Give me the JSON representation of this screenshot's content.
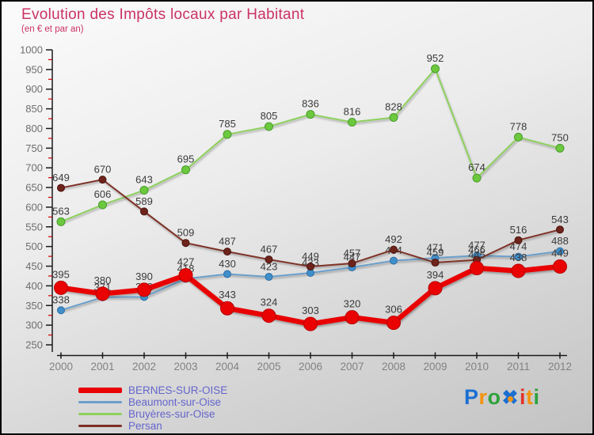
{
  "header": {
    "title": "Evolution des Impôts locaux par Habitant",
    "subtitle": "(en € et par an)",
    "title_color": "#cb3365"
  },
  "chart_data": {
    "type": "line",
    "x": [
      "2000",
      "2001",
      "2002",
      "2003",
      "2004",
      "2005",
      "2006",
      "2007",
      "2008",
      "2009",
      "2010",
      "2011",
      "2012"
    ],
    "series": [
      {
        "name": "BERNES-SUR-OISE",
        "color": "#e90303",
        "dot_stroke": "#b80000",
        "stroke_width": 6.5,
        "dot_radius": 8.5,
        "values": [
          395,
          380,
          390,
          427,
          343,
          324,
          303,
          320,
          306,
          394,
          445,
          438,
          449
        ]
      },
      {
        "name": "Beaumont-sur-Oise",
        "color": "#6b9fcc",
        "dot_stroke": "#2e6da4",
        "dot_fill": "#3f8fca",
        "stroke_width": 2,
        "dot_radius": 4.5,
        "values": [
          338,
          371,
          372,
          418,
          430,
          423,
          433,
          447,
          464,
          471,
          477,
          474,
          488
        ]
      },
      {
        "name": "Bruyères-sur-Oise",
        "color": "#8ed05e",
        "dot_stroke": "#4a9b2f",
        "dot_fill": "#6cc93e",
        "stroke_width": 2,
        "dot_radius": 5,
        "values": [
          563,
          606,
          643,
          695,
          785,
          805,
          836,
          816,
          828,
          952,
          674,
          778,
          750
        ]
      },
      {
        "name": "Persan",
        "color": "#7d3026",
        "dot_stroke": "#4a120c",
        "dot_fill": "#6e241c",
        "stroke_width": 2,
        "dot_radius": 4.5,
        "values": [
          649,
          670,
          589,
          509,
          487,
          467,
          449,
          457,
          492,
          459,
          466,
          516,
          543
        ]
      }
    ],
    "ylim": [
      250,
      1000
    ],
    "ytick_step": 50,
    "yminor_step": 25,
    "grid": false,
    "legend_position": "bottom-left",
    "value_label_color": "#3a3a3a",
    "axis_color": "#1a1a1a",
    "ytick_label_color": "#6e6e6e",
    "xtick_label_color": "#828282",
    "minor_tick_color": "#cc0000",
    "legend_text_color": "#6565cd"
  },
  "logo": {
    "letters": [
      {
        "ch": "P",
        "color": "#1b6fd2"
      },
      {
        "ch": "r",
        "color": "#f3930e"
      },
      {
        "ch": "o",
        "color": "#2ea23b"
      },
      {
        "ch": "x",
        "color": "#1b6fd2",
        "flower": true,
        "center_color": "#f3930e"
      },
      {
        "ch": "i",
        "color": "#e1342a"
      },
      {
        "ch": "t",
        "color": "#f3930e"
      },
      {
        "ch": "i",
        "color": "#2ea23b"
      }
    ]
  }
}
